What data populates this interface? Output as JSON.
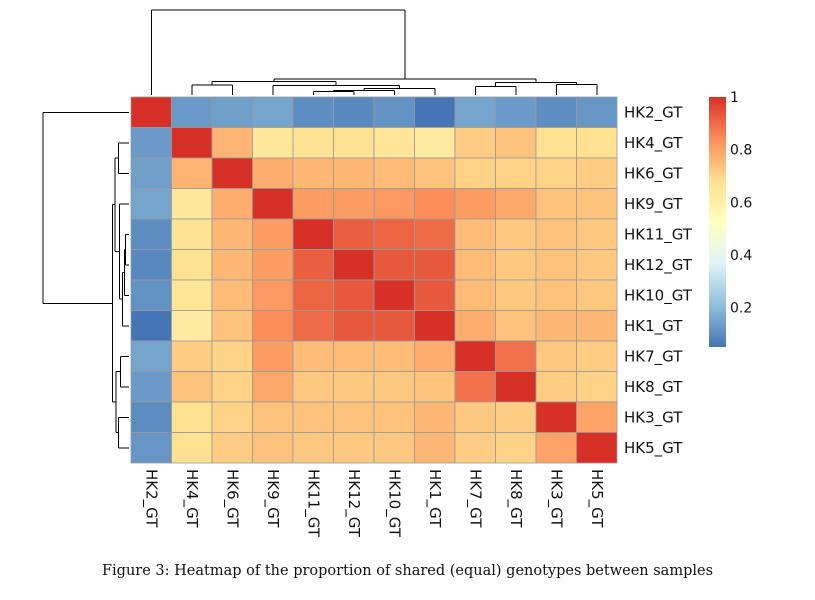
{
  "chart_data": {
    "type": "heatmap",
    "title": "",
    "rows": [
      "HK2_GT",
      "HK4_GT",
      "HK6_GT",
      "HK9_GT",
      "HK11_GT",
      "HK12_GT",
      "HK10_GT",
      "HK1_GT",
      "HK7_GT",
      "HK8_GT",
      "HK3_GT",
      "HK5_GT"
    ],
    "columns": [
      "HK2_GT",
      "HK4_GT",
      "HK6_GT",
      "HK9_GT",
      "HK11_GT",
      "HK12_GT",
      "HK10_GT",
      "HK1_GT",
      "HK7_GT",
      "HK8_GT",
      "HK3_GT",
      "HK5_GT"
    ],
    "values": [
      [
        1.0,
        0.13,
        0.14,
        0.15,
        0.1,
        0.09,
        0.11,
        0.05,
        0.15,
        0.13,
        0.1,
        0.12
      ],
      [
        0.13,
        1.0,
        0.77,
        0.65,
        0.67,
        0.67,
        0.66,
        0.63,
        0.72,
        0.74,
        0.68,
        0.68
      ],
      [
        0.14,
        0.77,
        1.0,
        0.78,
        0.76,
        0.76,
        0.75,
        0.74,
        0.71,
        0.71,
        0.71,
        0.72
      ],
      [
        0.15,
        0.65,
        0.78,
        1.0,
        0.81,
        0.81,
        0.82,
        0.84,
        0.81,
        0.79,
        0.74,
        0.74
      ],
      [
        0.1,
        0.67,
        0.76,
        0.81,
        1.0,
        0.92,
        0.91,
        0.9,
        0.75,
        0.73,
        0.74,
        0.73
      ],
      [
        0.09,
        0.67,
        0.76,
        0.81,
        0.92,
        1.0,
        0.93,
        0.93,
        0.75,
        0.73,
        0.74,
        0.73
      ],
      [
        0.11,
        0.66,
        0.75,
        0.82,
        0.91,
        0.93,
        1.0,
        0.93,
        0.75,
        0.73,
        0.74,
        0.73
      ],
      [
        0.05,
        0.63,
        0.74,
        0.84,
        0.9,
        0.93,
        0.93,
        1.0,
        0.78,
        0.74,
        0.76,
        0.76
      ],
      [
        0.15,
        0.72,
        0.71,
        0.81,
        0.75,
        0.75,
        0.75,
        0.78,
        1.0,
        0.89,
        0.73,
        0.72
      ],
      [
        0.13,
        0.74,
        0.71,
        0.79,
        0.73,
        0.73,
        0.73,
        0.74,
        0.89,
        1.0,
        0.72,
        0.71
      ],
      [
        0.1,
        0.68,
        0.71,
        0.74,
        0.74,
        0.74,
        0.74,
        0.76,
        0.73,
        0.72,
        1.0,
        0.8
      ],
      [
        0.12,
        0.68,
        0.72,
        0.74,
        0.73,
        0.73,
        0.73,
        0.76,
        0.72,
        0.71,
        0.8,
        1.0
      ]
    ],
    "color_scale": {
      "min": 0.05,
      "max": 1,
      "stops": [
        "#4575b4",
        "#91bfdb",
        "#e0f3f8",
        "#ffffbf",
        "#fee090",
        "#fc8d59",
        "#d73027"
      ],
      "ticks": [
        0.2,
        0.4,
        0.6,
        0.8,
        1
      ],
      "tick_labels": [
        "0.2",
        "0.4",
        "0.6",
        "0.8",
        "1"
      ]
    },
    "grid": true,
    "legend_placement": "right"
  },
  "caption": "Figure 3: Heatmap of the proportion of shared (equal) genotypes between samples"
}
